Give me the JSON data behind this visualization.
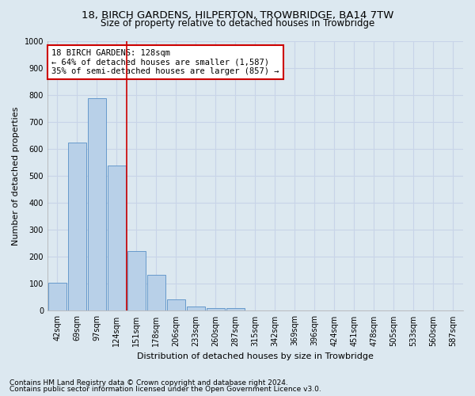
{
  "title1": "18, BIRCH GARDENS, HILPERTON, TROWBRIDGE, BA14 7TW",
  "title2": "Size of property relative to detached houses in Trowbridge",
  "xlabel": "Distribution of detached houses by size in Trowbridge",
  "ylabel": "Number of detached properties",
  "footnote1": "Contains HM Land Registry data © Crown copyright and database right 2024.",
  "footnote2": "Contains public sector information licensed under the Open Government Licence v3.0.",
  "bar_labels": [
    "42sqm",
    "69sqm",
    "97sqm",
    "124sqm",
    "151sqm",
    "178sqm",
    "206sqm",
    "233sqm",
    "260sqm",
    "287sqm",
    "315sqm",
    "342sqm",
    "369sqm",
    "396sqm",
    "424sqm",
    "451sqm",
    "478sqm",
    "505sqm",
    "533sqm",
    "560sqm",
    "587sqm"
  ],
  "bar_values": [
    103,
    622,
    787,
    537,
    222,
    133,
    42,
    17,
    10,
    11,
    0,
    0,
    0,
    0,
    0,
    0,
    0,
    0,
    0,
    0,
    0
  ],
  "bar_color": "#b8d0e8",
  "bar_edge_color": "#6699cc",
  "grid_color": "#c8d4e8",
  "background_color": "#dce8f0",
  "plot_bg_color": "#dce8f0",
  "property_label": "18 BIRCH GARDENS: 128sqm",
  "annotation_line1": "← 64% of detached houses are smaller (1,587)",
  "annotation_line2": "35% of semi-detached houses are larger (857) →",
  "vline_color": "#cc0000",
  "box_color": "#ffffff",
  "box_edge_color": "#cc0000",
  "ylim": [
    0,
    1000
  ],
  "yticks": [
    0,
    100,
    200,
    300,
    400,
    500,
    600,
    700,
    800,
    900,
    1000
  ],
  "title1_fontsize": 9.5,
  "title2_fontsize": 8.5,
  "xlabel_fontsize": 8,
  "ylabel_fontsize": 8,
  "tick_fontsize": 7,
  "annotation_fontsize": 7.5,
  "footnote_fontsize": 6.5
}
